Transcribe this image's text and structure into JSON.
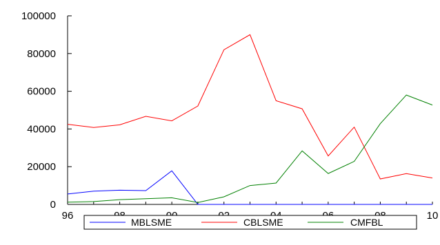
{
  "chart_data": {
    "type": "line",
    "title": "",
    "xlabel": "",
    "ylabel": "",
    "x": [
      1996,
      1997,
      1998,
      1999,
      2000,
      2001,
      2002,
      2003,
      2004,
      2005,
      2006,
      2007,
      2008,
      2009,
      2010
    ],
    "xlim": [
      1996,
      2010
    ],
    "ylim": [
      0,
      100000
    ],
    "x_tick_values": [
      1996,
      1998,
      2000,
      2002,
      2004,
      2006,
      2008,
      2010
    ],
    "x_tick_labels": [
      "96",
      "98",
      "00",
      "02",
      "04",
      "06",
      "08",
      "10"
    ],
    "y_tick_values": [
      0,
      20000,
      40000,
      60000,
      80000,
      100000
    ],
    "y_tick_labels": [
      "0",
      "20000",
      "40000",
      "60000",
      "80000",
      "100000"
    ],
    "grid": false,
    "legend_position": "bottom",
    "series": [
      {
        "name": "MBLSME",
        "color": "#0000ff",
        "values": [
          5500,
          7000,
          7500,
          7300,
          17800,
          0,
          0,
          0,
          0,
          0,
          0,
          0,
          0,
          0,
          0
        ]
      },
      {
        "name": "CBLSME",
        "color": "#ff0000",
        "values": [
          42500,
          40800,
          42200,
          46700,
          44300,
          52200,
          82000,
          90000,
          55000,
          50700,
          25700,
          41000,
          13500,
          16300,
          14000
        ]
      },
      {
        "name": "CMFBL",
        "color": "#008000",
        "values": [
          1200,
          1500,
          2500,
          3000,
          3500,
          1000,
          4000,
          10000,
          11300,
          28400,
          16400,
          22800,
          42800,
          58000,
          52700
        ]
      }
    ]
  }
}
